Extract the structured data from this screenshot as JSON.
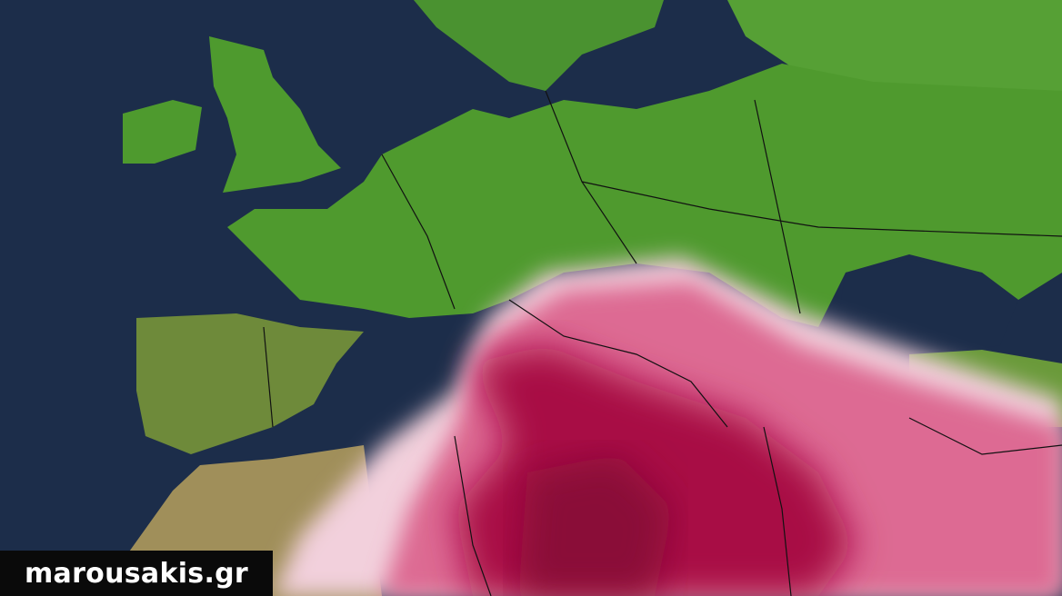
{
  "watermark": {
    "text": "marousakis.gr"
  },
  "colors": {
    "ocean": "#1c2d4a",
    "land": "#4f9a2e",
    "arid_land": "#9a8a55",
    "dust_light": "#f2d0dc",
    "dust_mid": "#dd6a93",
    "dust_dark": "#a80d45",
    "borders": "#111111"
  },
  "layers": [
    "ocean",
    "land",
    "dust-concentration-overlay",
    "country-borders"
  ]
}
